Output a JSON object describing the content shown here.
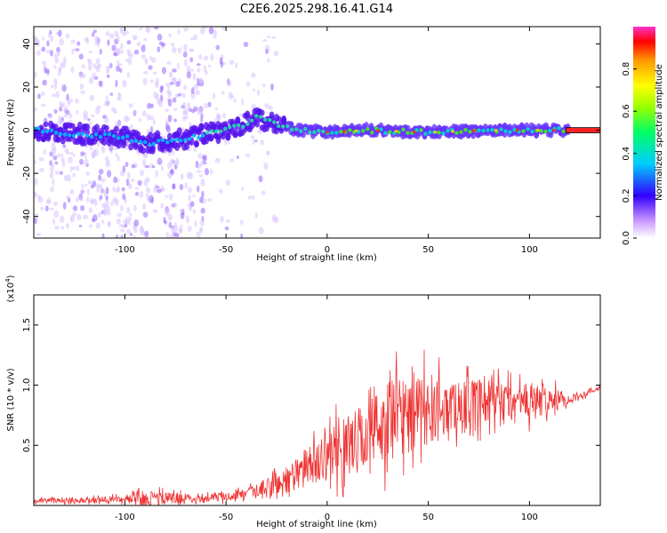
{
  "title": "C2E6.2025.298.16.41.G14",
  "chart_data": [
    {
      "type": "heatmap",
      "title": "C2E6.2025.298.16.41.G14",
      "xlabel": "Height of straight line (km)",
      "ylabel": "Frequency (Hz)",
      "xlim": [
        -145,
        135
      ],
      "ylim": [
        -50,
        48
      ],
      "xticks": [
        -100,
        -50,
        0,
        50,
        100
      ],
      "xtick_labels": [
        "-100",
        "-50",
        "0",
        "50",
        "100"
      ],
      "yticks": [
        -40,
        -20,
        0,
        20,
        40
      ],
      "ytick_labels": [
        "-40",
        "-20",
        "0",
        "20",
        "40"
      ],
      "trend": {
        "x": [
          -145,
          -120,
          -100,
          -90,
          -80,
          -70,
          -60,
          -50,
          -40,
          -35,
          -25,
          -15,
          0,
          20,
          50,
          80,
          110,
          135
        ],
        "y": [
          0,
          -2,
          -3,
          -6,
          -5,
          -4,
          -2,
          0,
          3,
          6,
          3,
          0,
          -1,
          0,
          -1,
          0,
          0,
          0
        ]
      },
      "colorbar": {
        "label": "Normalized spectral amplitude",
        "range": [
          0.0,
          1.0
        ],
        "ticks": [
          0.0,
          0.2,
          0.4,
          0.6,
          0.8
        ],
        "tick_labels": [
          "0.0",
          "0.2",
          "0.4",
          "0.6",
          "0.8"
        ]
      }
    },
    {
      "type": "line",
      "xlabel": "Height of straight line (km)",
      "ylabel": "SNR (10 * v/v)",
      "multiplier_label": "(x10",
      "multiplier_exp": "4",
      "xlim": [
        -145,
        135
      ],
      "ylim": [
        0,
        1.75
      ],
      "xticks": [
        -100,
        -50,
        0,
        50,
        100
      ],
      "xtick_labels": [
        "-100",
        "-50",
        "0",
        "50",
        "100"
      ],
      "yticks": [
        0.5,
        1.0,
        1.5
      ],
      "ytick_labels": [
        "0.5",
        "1.0",
        "1.5"
      ],
      "series": [
        {
          "name": "SNR",
          "color": "#ee3333",
          "envelope": {
            "x": [
              -145,
              -100,
              -90,
              -60,
              -40,
              -30,
              -20,
              -10,
              0,
              10,
              20,
              30,
              40,
              50,
              60,
              80,
              100,
              110,
              120,
              135
            ],
            "base": [
              0.04,
              0.05,
              0.06,
              0.06,
              0.09,
              0.14,
              0.22,
              0.32,
              0.42,
              0.5,
              0.58,
              0.72,
              0.8,
              0.78,
              0.82,
              0.85,
              0.85,
              0.88,
              0.88,
              0.98
            ],
            "spread": [
              0.03,
              0.05,
              0.12,
              0.05,
              0.08,
              0.15,
              0.22,
              0.3,
              0.35,
              0.45,
              0.55,
              0.6,
              0.6,
              0.5,
              0.4,
              0.35,
              0.3,
              0.2,
              0.06,
              0.03
            ]
          }
        }
      ]
    }
  ]
}
